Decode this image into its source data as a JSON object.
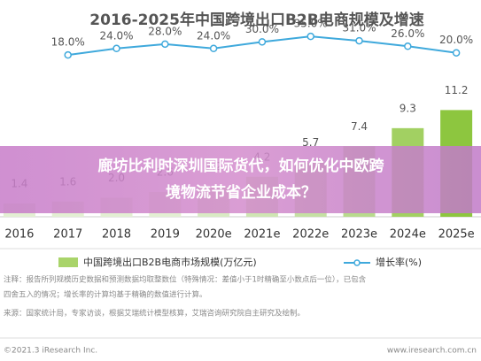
{
  "chart_data": {
    "type": "bar_line",
    "title": "2016-2025年中国跨境出口B2B电商规模及增速",
    "categories": [
      "2016",
      "2017",
      "2018",
      "2019",
      "2020e",
      "2021e",
      "2022e",
      "2023e",
      "2024e",
      "2025e"
    ],
    "series": [
      {
        "name": "中国跨境出口B2B电商市场规模(万亿元)",
        "type": "bar",
        "color": "#a9d46a",
        "colors": [
          "#e3efd3",
          "#e3efd3",
          "#e3efd3",
          "#e3efd3",
          "#d9eac4",
          "#cfe5b3",
          "#c5e0a3",
          "#b8da8d",
          "#a2d062",
          "#8dc63f"
        ],
        "values": [
          1.4,
          1.6,
          2.0,
          2.6,
          3.2,
          4.2,
          5.7,
          7.4,
          9.3,
          11.2
        ],
        "value_labels": [
          "1.4",
          "1.6",
          "2.0",
          "2.6",
          "3.2",
          "4.2",
          "5.7",
          "7.4",
          "9.3",
          "11.2"
        ]
      },
      {
        "name": "增长率(%)",
        "type": "line",
        "axis": "y2",
        "color": "#3fa9dc",
        "values": [
          null,
          18.0,
          24.0,
          28.0,
          24.0,
          30.0,
          35.0,
          31.0,
          26.0,
          20.0
        ],
        "value_labels": [
          null,
          "18.0%",
          "24.0%",
          "28.0%",
          "24.0%",
          "30.0%",
          "35.0%",
          "31.0%",
          "26.0%",
          "20.0%"
        ]
      }
    ],
    "ylim": [
      0,
      19.5
    ],
    "y2lim": [
      -130,
      40
    ],
    "notes": [
      "注释：报告所列规模历史数据和预测数据均取整数位（特殊情况：差值小于1时精确至小数点后一位），已包含",
      "四舍五入的情况；增长率的计算均基于精确的数值进行计算。",
      "来源：国家统计局，专家访谈，根据艾瑞统计模型核算，艾瑞咨询研究院自主研究及绘制。"
    ],
    "copyright": "©2021.3 iResearch Inc.",
    "website": "www.iresearch.com.cn"
  },
  "overlay": {
    "lines": [
      "廊坊比利时深圳国际货代，如何优化中欧跨",
      "境物流节省企业成本？"
    ]
  }
}
